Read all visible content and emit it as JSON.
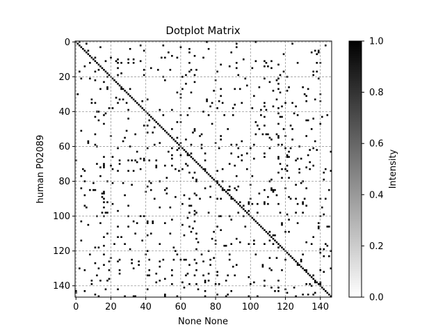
{
  "chart_data": {
    "type": "heatmap",
    "title": "Dotplot Matrix",
    "xlabel": "None None",
    "ylabel": "human P02089",
    "colorbar_label": "Intensity",
    "colormap": "gray_r",
    "colors": {
      "low": "#ffffff",
      "high": "#000000",
      "grid": "#999999"
    },
    "n_rows": 147,
    "n_cols": 147,
    "xlim": [
      0,
      147
    ],
    "ylim": [
      147,
      0
    ],
    "x_ticks": [
      0,
      20,
      40,
      60,
      80,
      100,
      120,
      140
    ],
    "y_ticks": [
      0,
      20,
      40,
      60,
      80,
      100,
      120,
      140
    ],
    "colorbar_range": [
      0.0,
      1.0
    ],
    "colorbar_ticks": [
      "0.0",
      "0.2",
      "0.4",
      "0.6",
      "0.8",
      "1.0"
    ],
    "grid": true,
    "diagonal_match": true
  }
}
